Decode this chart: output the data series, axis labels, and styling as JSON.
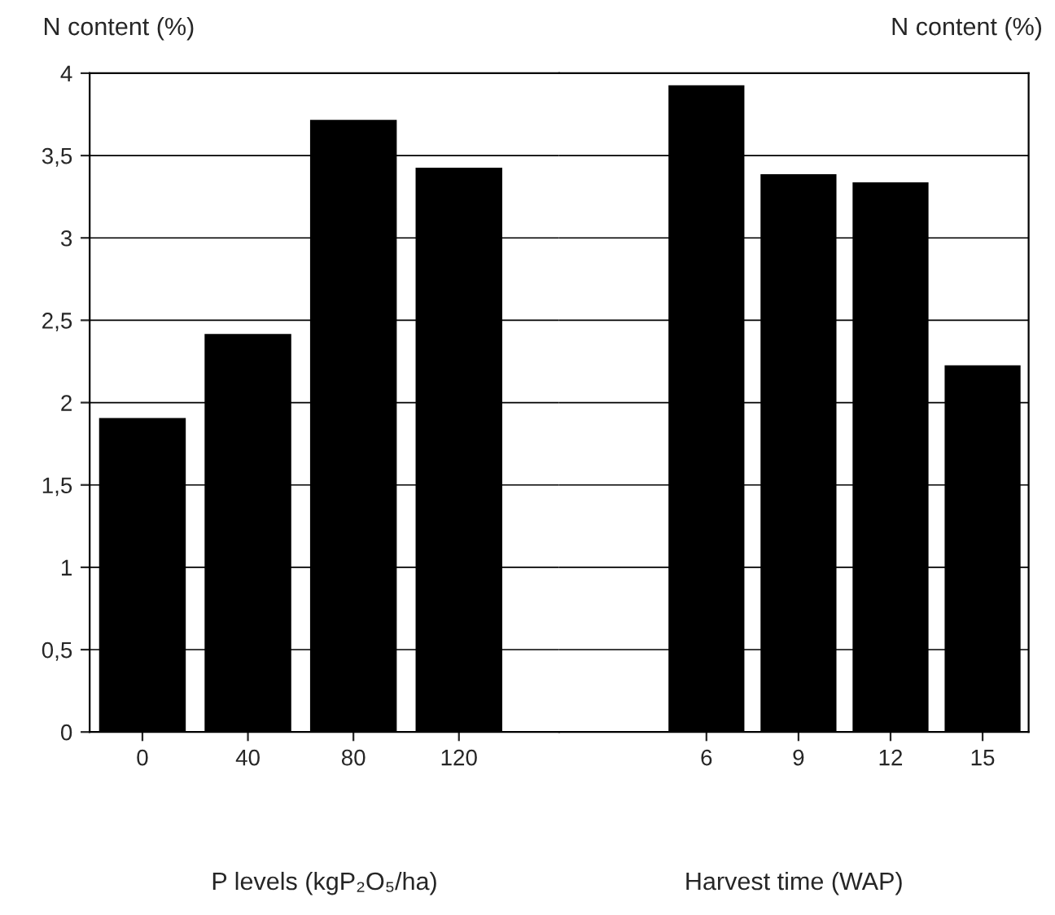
{
  "chart_data": [
    {
      "type": "bar",
      "categories": [
        "0",
        "40",
        "80",
        "120"
      ],
      "values": [
        1.9,
        2.41,
        3.71,
        3.42
      ],
      "color": "#000000",
      "xlabel": "P levels (kgP₂O₅/ha)",
      "ylabel": "N content (%)",
      "ylim": [
        0,
        4
      ],
      "yticks": [
        0,
        {
          "value": 0.5,
          "label": "0,5"
        },
        1,
        {
          "value": 1.5,
          "label": "1,5"
        },
        2,
        {
          "value": 2.5,
          "label": "2,5"
        },
        3,
        {
          "value": 3.5,
          "label": "3,5"
        },
        4
      ],
      "grid": "y",
      "legend": false
    },
    {
      "type": "bar",
      "categories": [
        "6",
        "9",
        "12",
        "15"
      ],
      "values": [
        3.92,
        3.38,
        3.33,
        2.22
      ],
      "color": "#000000",
      "xlabel": "Harvest time (WAP)",
      "ylabel": "N content (%)",
      "ylim": [
        0,
        4
      ],
      "yticks": [
        0,
        0.5,
        1,
        1.5,
        2,
        2.5,
        3,
        3.5,
        4
      ],
      "grid": "y",
      "legend": false,
      "tick_labels": "x"
    }
  ]
}
